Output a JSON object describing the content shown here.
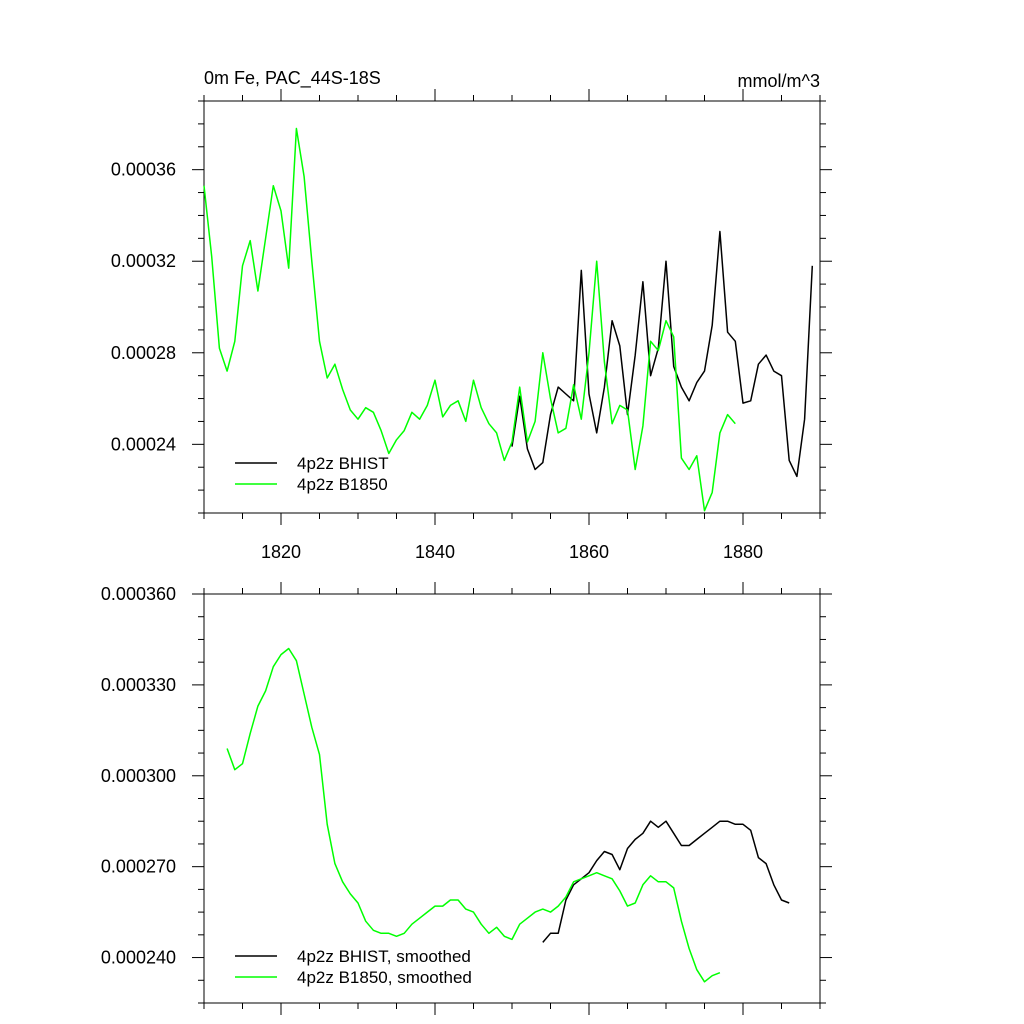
{
  "chart_data": [
    {
      "type": "line",
      "title_left": "0m Fe, PAC_44S-18S",
      "title_right": "mmol/m^3",
      "xlim": [
        1810,
        1890
      ],
      "ylim": [
        0.00021,
        0.00039
      ],
      "xticks": [
        1820,
        1840,
        1860,
        1880
      ],
      "xtick_labels": [
        "1820",
        "1840",
        "1860",
        "1880"
      ],
      "yticks": [
        0.00024,
        0.00028,
        0.00032,
        0.00036
      ],
      "ytick_labels": [
        "0.00024",
        "0.00028",
        "0.00032",
        "0.00036"
      ],
      "legend_position": "bottom-left",
      "series": [
        {
          "name": "4p2z BHIST",
          "color": "#000000",
          "x": [
            1850,
            1851,
            1852,
            1853,
            1854,
            1855,
            1856,
            1857,
            1858,
            1859,
            1860,
            1861,
            1862,
            1863,
            1864,
            1865,
            1866,
            1867,
            1868,
            1869,
            1870,
            1871,
            1872,
            1873,
            1874,
            1875,
            1876,
            1877,
            1878,
            1879,
            1880,
            1881,
            1882,
            1883,
            1884,
            1885,
            1886,
            1887,
            1888,
            1889
          ],
          "values": [
            0.000239,
            0.000261,
            0.000238,
            0.000229,
            0.000232,
            0.000253,
            0.000265,
            0.000262,
            0.000259,
            0.000316,
            0.000262,
            0.000245,
            0.000265,
            0.000294,
            0.000283,
            0.000253,
            0.000279,
            0.000311,
            0.00027,
            0.000282,
            0.00032,
            0.000274,
            0.000265,
            0.000259,
            0.000267,
            0.000272,
            0.000292,
            0.000333,
            0.000289,
            0.000285,
            0.000258,
            0.000259,
            0.000275,
            0.000279,
            0.000272,
            0.00027,
            0.000233,
            0.000226,
            0.000251,
            0.000318
          ]
        },
        {
          "name": "4p2z B1850",
          "color": "#00ff00",
          "x": [
            1810,
            1811,
            1812,
            1813,
            1814,
            1815,
            1816,
            1817,
            1818,
            1819,
            1820,
            1821,
            1822,
            1823,
            1824,
            1825,
            1826,
            1827,
            1828,
            1829,
            1830,
            1831,
            1832,
            1833,
            1834,
            1835,
            1836,
            1837,
            1838,
            1839,
            1840,
            1841,
            1842,
            1843,
            1844,
            1845,
            1846,
            1847,
            1848,
            1849,
            1850,
            1851,
            1852,
            1853,
            1854,
            1855,
            1856,
            1857,
            1858,
            1859,
            1860,
            1861,
            1862,
            1863,
            1864,
            1865,
            1866,
            1867,
            1868,
            1869,
            1870,
            1871,
            1872,
            1873,
            1874,
            1875,
            1876,
            1877,
            1878,
            1879
          ],
          "values": [
            0.000353,
            0.000322,
            0.000282,
            0.000272,
            0.000285,
            0.000318,
            0.000329,
            0.000307,
            0.00033,
            0.000353,
            0.000342,
            0.000317,
            0.000378,
            0.000357,
            0.00032,
            0.000285,
            0.000269,
            0.000275,
            0.000264,
            0.000255,
            0.000251,
            0.000256,
            0.000254,
            0.000246,
            0.000236,
            0.000242,
            0.000246,
            0.000254,
            0.000251,
            0.000257,
            0.000268,
            0.000252,
            0.000257,
            0.000259,
            0.00025,
            0.000268,
            0.000256,
            0.000249,
            0.000245,
            0.000233,
            0.000241,
            0.000265,
            0.000241,
            0.00025,
            0.00028,
            0.00026,
            0.000245,
            0.000247,
            0.000266,
            0.000251,
            0.00028,
            0.00032,
            0.000276,
            0.000249,
            0.000257,
            0.000255,
            0.000229,
            0.000248,
            0.000285,
            0.000281,
            0.000294,
            0.000287,
            0.000234,
            0.000229,
            0.000235,
            0.000211,
            0.000219,
            0.000245,
            0.000253,
            0.000249
          ]
        }
      ]
    },
    {
      "type": "line",
      "xlim": [
        1810,
        1890
      ],
      "ylim": [
        0.000225,
        0.00036
      ],
      "xticks": [
        1820,
        1840,
        1860,
        1880
      ],
      "yticks": [
        0.00024,
        0.00027,
        0.0003,
        0.00033,
        0.00036
      ],
      "ytick_labels": [
        "0.000240",
        "0.000270",
        "0.000300",
        "0.000330",
        "0.000360"
      ],
      "legend_position": "bottom-left",
      "series": [
        {
          "name": "4p2z BHIST, smoothed",
          "color": "#000000",
          "x": [
            1854,
            1855,
            1856,
            1857,
            1858,
            1859,
            1860,
            1861,
            1862,
            1863,
            1864,
            1865,
            1866,
            1867,
            1868,
            1869,
            1870,
            1871,
            1872,
            1873,
            1874,
            1875,
            1876,
            1877,
            1878,
            1879,
            1880,
            1881,
            1882,
            1883,
            1884,
            1885,
            1886
          ],
          "values": [
            0.000245,
            0.000248,
            0.000248,
            0.000259,
            0.000264,
            0.000266,
            0.000268,
            0.000272,
            0.000275,
            0.000274,
            0.000269,
            0.000276,
            0.000279,
            0.000281,
            0.000285,
            0.000283,
            0.000285,
            0.000281,
            0.000277,
            0.000277,
            0.000279,
            0.000281,
            0.000283,
            0.000285,
            0.000285,
            0.000284,
            0.000284,
            0.000282,
            0.000273,
            0.000271,
            0.000264,
            0.000259,
            0.000258
          ]
        },
        {
          "name": "4p2z B1850, smoothed",
          "color": "#00ff00",
          "x": [
            1813,
            1814,
            1815,
            1816,
            1817,
            1818,
            1819,
            1820,
            1821,
            1822,
            1823,
            1824,
            1825,
            1826,
            1827,
            1828,
            1829,
            1830,
            1831,
            1832,
            1833,
            1834,
            1835,
            1836,
            1837,
            1838,
            1839,
            1840,
            1841,
            1842,
            1843,
            1844,
            1845,
            1846,
            1847,
            1848,
            1849,
            1850,
            1851,
            1852,
            1853,
            1854,
            1855,
            1856,
            1857,
            1858,
            1859,
            1860,
            1861,
            1862,
            1863,
            1864,
            1865,
            1866,
            1867,
            1868,
            1869,
            1870,
            1871,
            1872,
            1873,
            1874,
            1875,
            1876,
            1877
          ],
          "values": [
            0.000309,
            0.000302,
            0.000304,
            0.000314,
            0.000323,
            0.000328,
            0.000336,
            0.00034,
            0.000342,
            0.000338,
            0.000327,
            0.000316,
            0.000307,
            0.000284,
            0.000271,
            0.000265,
            0.000261,
            0.000258,
            0.000252,
            0.000249,
            0.000248,
            0.000248,
            0.000247,
            0.000248,
            0.000251,
            0.000253,
            0.000255,
            0.000257,
            0.000257,
            0.000259,
            0.000259,
            0.000256,
            0.000255,
            0.000251,
            0.000248,
            0.00025,
            0.000247,
            0.000246,
            0.000251,
            0.000253,
            0.000255,
            0.000256,
            0.000255,
            0.000257,
            0.00026,
            0.000265,
            0.000266,
            0.000267,
            0.000268,
            0.000267,
            0.000266,
            0.000262,
            0.000257,
            0.000258,
            0.000264,
            0.000267,
            0.000265,
            0.000265,
            0.000263,
            0.000252,
            0.000243,
            0.000236,
            0.000232,
            0.000234,
            0.000235
          ]
        }
      ]
    }
  ]
}
